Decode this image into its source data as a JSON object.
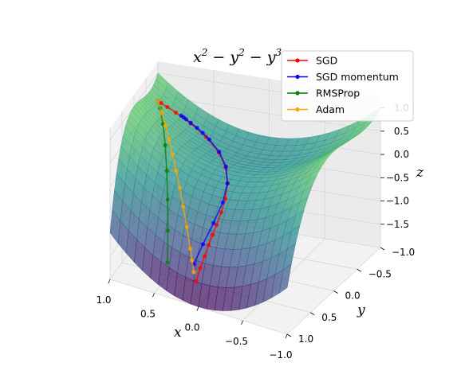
{
  "chart_data": {
    "type": "surface3d",
    "title": "x^2 - y^2 - y^3",
    "title_parts": {
      "a": "x",
      "sa": "2",
      "b": " − y",
      "sb": "2",
      "c": " − y",
      "sc": "3"
    },
    "xlabel": "x",
    "ylabel": "y",
    "zlabel": "z",
    "xlim": [
      1.0,
      -1.0
    ],
    "ylim": [
      -1.0,
      1.0
    ],
    "zlim": [
      -2.0,
      1.25
    ],
    "xticks": [
      "1.0",
      "0.5",
      "0.0",
      "−0.5",
      "−1.0"
    ],
    "yticks": [
      "−1.0",
      "−0.5",
      "0.0",
      "0.5",
      "1.0"
    ],
    "zticks": [
      "1.0",
      "0.5",
      "0.0",
      "−0.5",
      "−1.0",
      "−1.5"
    ],
    "colormap": "viridis",
    "legend_position": "top-right",
    "series": [
      {
        "name": "SGD",
        "color": "#ff0000",
        "points": [
          [
            0,
            0.1
          ],
          [
            0.05,
            0.06
          ],
          [
            0.1,
            0.02
          ],
          [
            0.15,
            -0.02
          ],
          [
            0.2,
            -0.06
          ],
          [
            0.25,
            -0.1
          ],
          [
            0.32,
            -0.14
          ],
          [
            0.4,
            -0.18
          ],
          [
            0.5,
            -0.22
          ],
          [
            0.6,
            -0.26
          ],
          [
            0.7,
            -0.3
          ],
          [
            0.8,
            -0.34
          ],
          [
            0.88,
            -0.39
          ],
          [
            0.94,
            -0.44
          ],
          [
            0.97,
            -0.5
          ],
          [
            0.99,
            -0.6
          ],
          [
            1.0,
            -0.7
          ]
        ]
      },
      {
        "name": "SGD momentum",
        "color": "#0000ff",
        "points": [
          [
            0,
            0.1
          ],
          [
            0.1,
            0.05
          ],
          [
            0.22,
            -0.02
          ],
          [
            0.35,
            -0.1
          ],
          [
            0.48,
            -0.2
          ],
          [
            0.6,
            -0.3
          ],
          [
            0.7,
            -0.4
          ],
          [
            0.78,
            -0.48
          ],
          [
            0.82,
            -0.55
          ],
          [
            0.85,
            -0.6
          ],
          [
            0.88,
            -0.65
          ],
          [
            0.9,
            -0.7
          ],
          [
            0.91,
            -0.75
          ],
          [
            0.92,
            -0.8
          ]
        ]
      },
      {
        "name": "RMSProp",
        "color": "#008000",
        "points": [
          [
            0,
            0.1
          ],
          [
            0.15,
            0.05
          ],
          [
            0.3,
            0.0
          ],
          [
            0.45,
            -0.05
          ],
          [
            0.6,
            -0.1
          ],
          [
            0.75,
            -0.15
          ],
          [
            0.9,
            -0.2
          ],
          [
            1.0,
            -0.3
          ]
        ]
      },
      {
        "name": "Adam",
        "color": "#ffa500",
        "points": [
          [
            0,
            0.1
          ],
          [
            0.05,
            0.05
          ],
          [
            0.1,
            0.0
          ],
          [
            0.2,
            -0.05
          ],
          [
            0.3,
            -0.1
          ],
          [
            0.4,
            -0.15
          ],
          [
            0.5,
            -0.2
          ],
          [
            0.6,
            -0.25
          ],
          [
            0.7,
            -0.3
          ],
          [
            0.8,
            -0.35
          ],
          [
            0.9,
            -0.4
          ],
          [
            1.0,
            -0.45
          ]
        ]
      }
    ]
  }
}
